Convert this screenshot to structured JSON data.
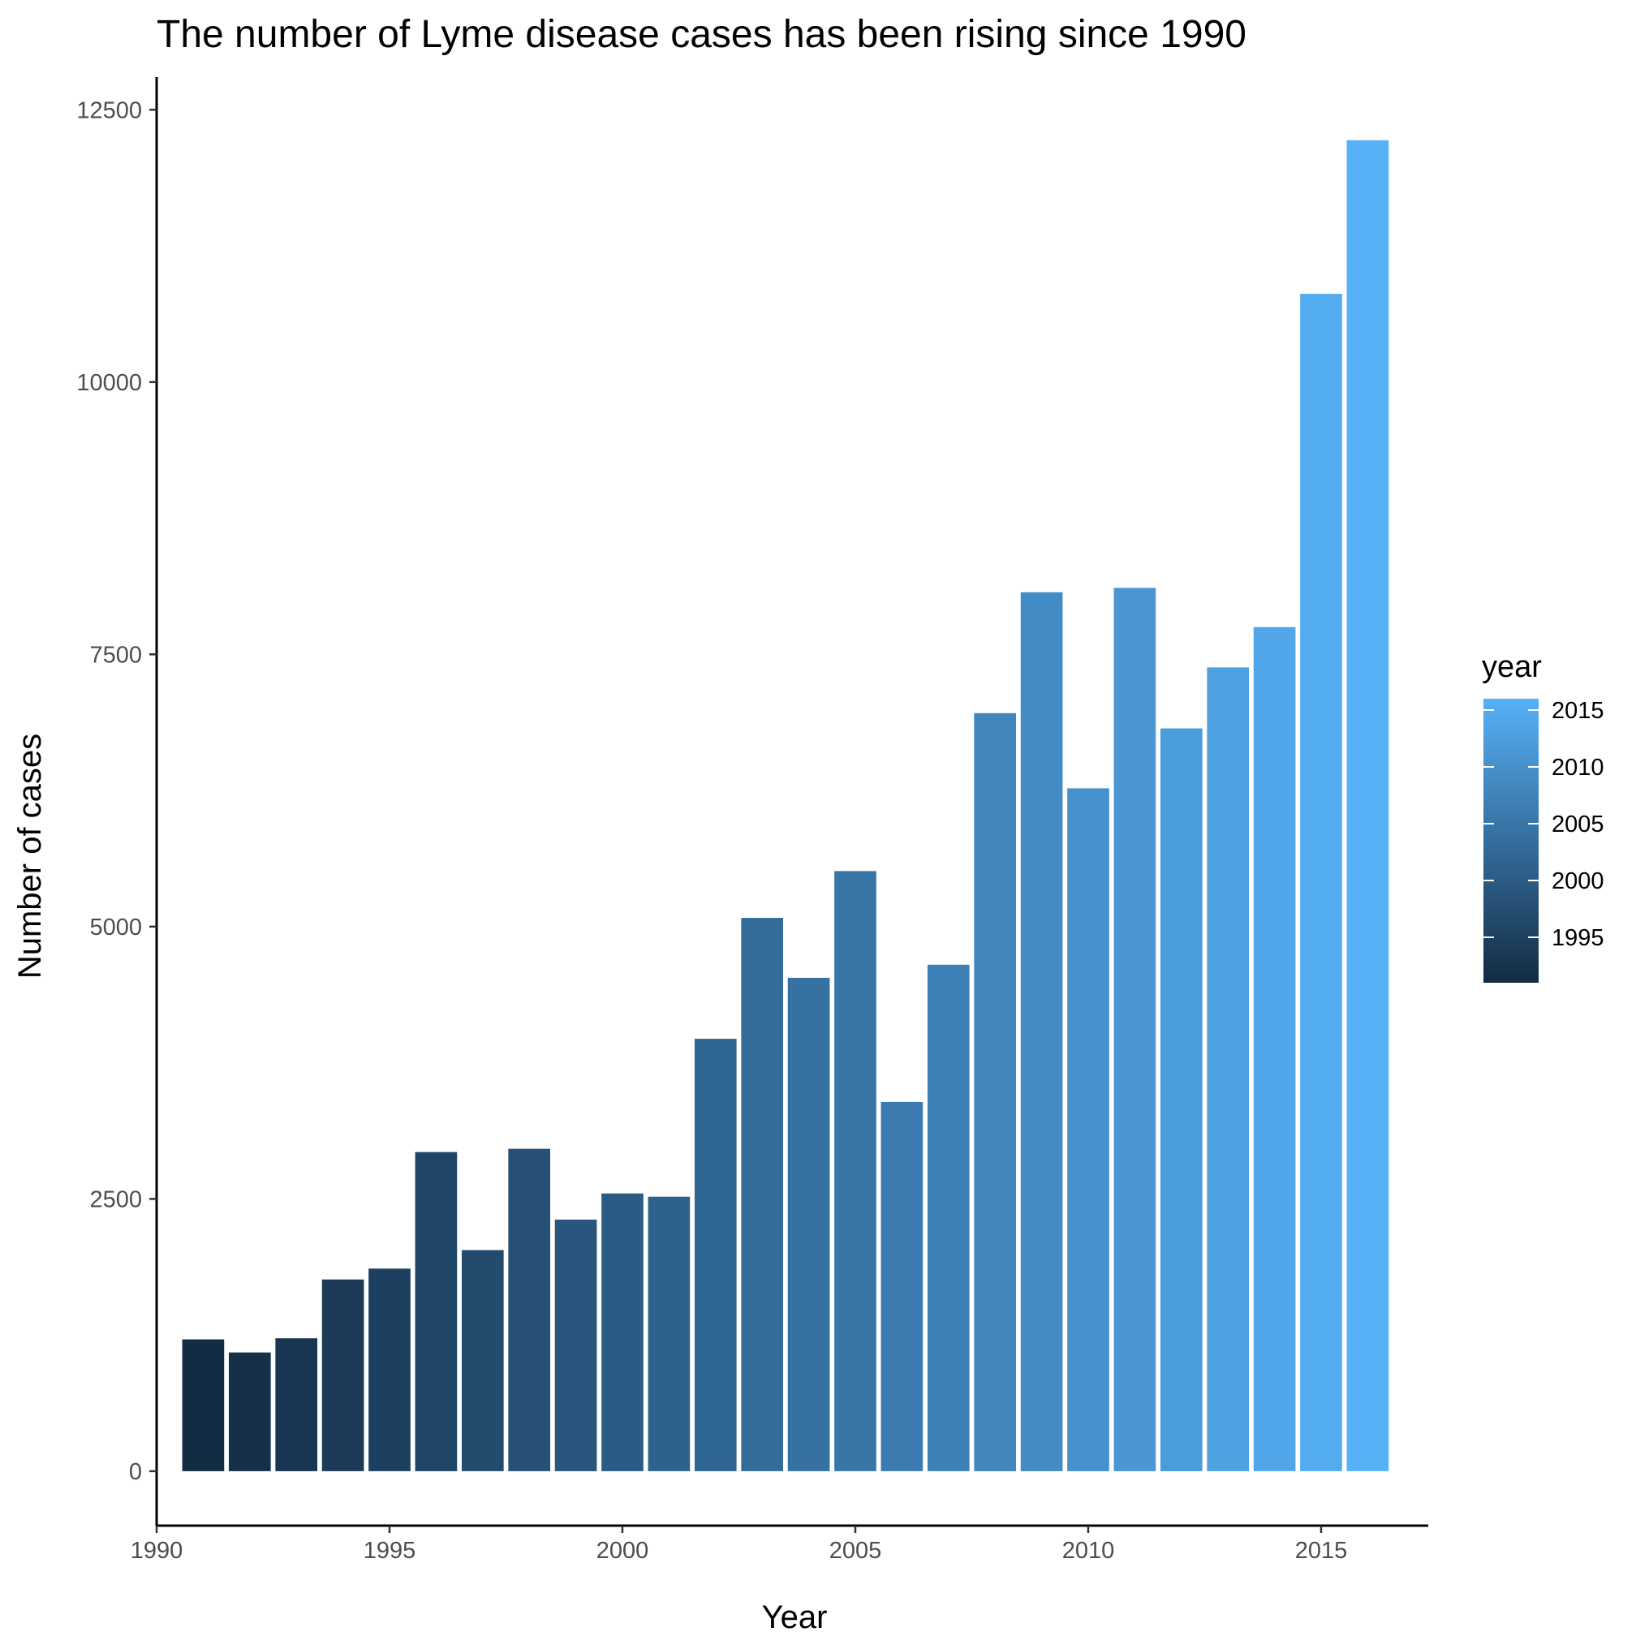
{
  "chart_data": {
    "type": "bar",
    "title": "The number of Lyme disease cases has been rising since 1990",
    "xlabel": "Year",
    "ylabel": "Number of cases",
    "xlim": [
      1990,
      2017.3
    ],
    "ylim": [
      -500,
      12800
    ],
    "x_ticks": [
      1990,
      1995,
      2000,
      2005,
      2010,
      2015
    ],
    "y_ticks": [
      0,
      2500,
      5000,
      7500,
      10000,
      12500
    ],
    "x_tick_labels": [
      "1990",
      "1995",
      "2000",
      "2005",
      "2010",
      "2015"
    ],
    "y_tick_labels": [
      "0",
      "2500",
      "5000",
      "7500",
      "10000",
      "12500"
    ],
    "categories": [
      1991,
      1992,
      1993,
      1994,
      1995,
      1996,
      1997,
      1998,
      1999,
      2000,
      2001,
      2002,
      2003,
      2004,
      2005,
      2006,
      2007,
      2008,
      2009,
      2010,
      2011,
      2012,
      2013,
      2014,
      2015,
      2016
    ],
    "values": [
      1210,
      1090,
      1220,
      1760,
      1860,
      2930,
      2030,
      2960,
      2310,
      2550,
      2520,
      3970,
      5080,
      4530,
      5510,
      3390,
      4650,
      6960,
      8070,
      6270,
      8110,
      6820,
      7380,
      7750,
      10810,
      12220
    ],
    "color_scale": {
      "low": "#132b43",
      "high": "#56b1f7",
      "min": 1991,
      "max": 2016
    },
    "grid": false,
    "legend": {
      "title": "year",
      "position": "right",
      "ticks": [
        1995,
        2000,
        2005,
        2010,
        2015
      ],
      "labels": [
        "1995",
        "2000",
        "2005",
        "2010",
        "2015"
      ]
    }
  }
}
